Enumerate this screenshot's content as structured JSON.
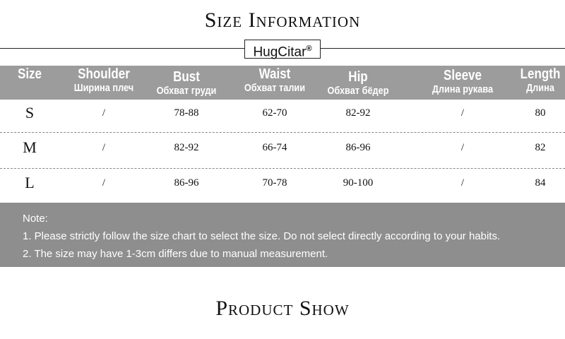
{
  "title": "Size Information",
  "brand": "HugCitar",
  "brand_mark": "®",
  "columns": [
    {
      "en": "Size",
      "ru": ""
    },
    {
      "en": "Shoulder",
      "ru": "Ширина плеч"
    },
    {
      "en": "Bust",
      "ru": "Обхват груди"
    },
    {
      "en": "Waist",
      "ru": "Обхват талии"
    },
    {
      "en": "Hip",
      "ru": "Обхват бёдер"
    },
    {
      "en": "Sleeve",
      "ru": "Длина рукава"
    },
    {
      "en": "Length",
      "ru": "Длина"
    }
  ],
  "rows": [
    [
      "S",
      "/",
      "78-88",
      "62-70",
      "82-92",
      "/",
      "80"
    ],
    [
      "M",
      "/",
      "82-92",
      "66-74",
      "86-96",
      "/",
      "82"
    ],
    [
      "L",
      "/",
      "86-96",
      "70-78",
      "90-100",
      "/",
      "84"
    ]
  ],
  "note": {
    "label": "Note:",
    "lines": [
      "1. Please strictly follow the size chart to select the size. Do not select directly according to your habits.",
      "2. The size may have 1-3cm differs due to manual measurement."
    ]
  },
  "section2_title": "Product Show"
}
